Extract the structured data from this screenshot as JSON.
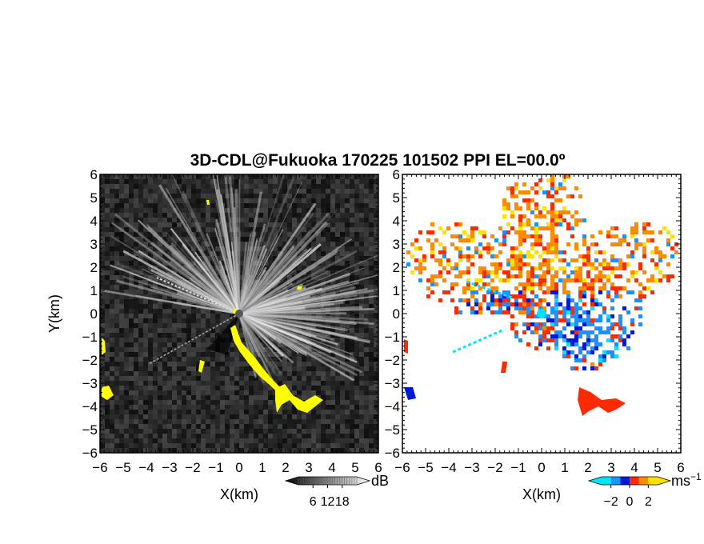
{
  "title": "3D-CDL@Fukuoka 170225 101502 PPI EL=00.0º",
  "chart_data": [
    {
      "type": "heatmap",
      "title": "3D-CDL@Fukuoka 170225 101502 PPI EL=00.0º",
      "xlabel": "X(km)",
      "ylabel": "Y(km)",
      "xlim": [
        -6,
        6
      ],
      "ylim": [
        -6,
        6
      ],
      "xticks": [
        "−6",
        "−5",
        "−4",
        "−3",
        "−2",
        "−1",
        "0",
        "1",
        "2",
        "3",
        "4",
        "5",
        "6"
      ],
      "yticks": [
        "−6",
        "−5",
        "−4",
        "−3",
        "−2",
        "−1",
        "0",
        "1",
        "2",
        "3",
        "4",
        "5",
        "6"
      ],
      "colorbar": {
        "unit": "dB",
        "ticks": [
          "6",
          "12",
          "18"
        ],
        "range": [
          0,
          24
        ],
        "colors": [
          "#000000",
          "#ffffff"
        ]
      },
      "highlight_color": "#ffff00",
      "background": "#1a1a1a"
    },
    {
      "type": "heatmap",
      "xlabel": "X(km)",
      "xlim": [
        -6,
        6
      ],
      "ylim": [
        -6,
        6
      ],
      "xticks": [
        "−6",
        "−5",
        "−4",
        "−3",
        "−2",
        "−1",
        "0",
        "1",
        "2",
        "3",
        "4",
        "5",
        "6"
      ],
      "yticks": [
        "−6",
        "−5",
        "−4",
        "−3",
        "−2",
        "−1",
        "0",
        "1",
        "2",
        "3",
        "4",
        "5",
        "6"
      ],
      "colorbar": {
        "unit": "ms",
        "unit_sup": "−1",
        "ticks": [
          "−2",
          "0",
          "2"
        ],
        "range": [
          -3,
          3
        ],
        "colors": [
          "#00e5ff",
          "#1e90ff",
          "#0018d8",
          "#ff2a00",
          "#ff8a00",
          "#ffe200"
        ]
      },
      "background": "#ffffff"
    }
  ]
}
